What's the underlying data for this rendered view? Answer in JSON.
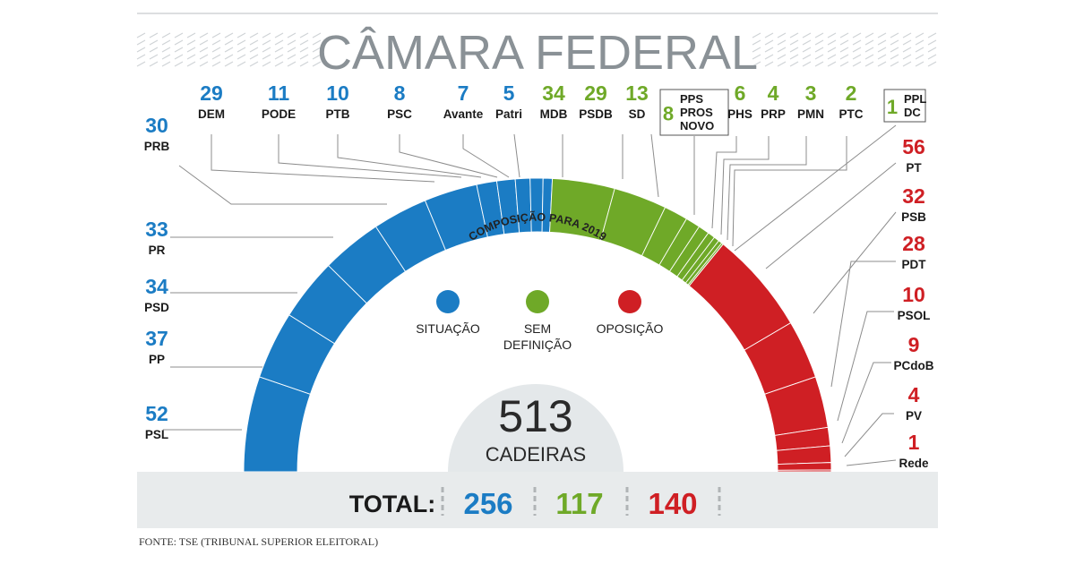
{
  "title": "CÂMARA FEDERAL",
  "source": "FONTE: TSE (TRIBUNAL SUPERIOR ELEITORAL)",
  "colors": {
    "situacao": "#1b7cc4",
    "sem_definicao": "#6fa928",
    "oposicao": "#cf1f24",
    "title": "#8a9196",
    "leader": "#8c8c8c",
    "band": "#e8ebec"
  },
  "chart_data": {
    "type": "parliament_arc",
    "title": "CÂMARA FEDERAL",
    "subtitle": "COMPOSIÇÃO PARA 2019",
    "total_seats": 513,
    "total_label": "CADEIRAS",
    "legend": [
      {
        "name": "SITUAÇÃO",
        "color": "#1b7cc4"
      },
      {
        "name": "SEM DEFINIÇÃO",
        "color": "#6fa928"
      },
      {
        "name": "OPOSIÇÃO",
        "color": "#cf1f24"
      }
    ],
    "parties": [
      {
        "name": "PSL",
        "seats": 52,
        "group": "situacao"
      },
      {
        "name": "PP",
        "seats": 37,
        "group": "situacao"
      },
      {
        "name": "PSD",
        "seats": 34,
        "group": "situacao"
      },
      {
        "name": "PR",
        "seats": 33,
        "group": "situacao"
      },
      {
        "name": "PRB",
        "seats": 30,
        "group": "situacao"
      },
      {
        "name": "DEM",
        "seats": 29,
        "group": "situacao"
      },
      {
        "name": "PODE",
        "seats": 11,
        "group": "situacao"
      },
      {
        "name": "PTB",
        "seats": 10,
        "group": "situacao"
      },
      {
        "name": "PSC",
        "seats": 8,
        "group": "situacao"
      },
      {
        "name": "Avante",
        "seats": 7,
        "group": "situacao"
      },
      {
        "name": "Patri",
        "seats": 5,
        "group": "situacao"
      },
      {
        "name": "MDB",
        "seats": 34,
        "group": "sem_definicao"
      },
      {
        "name": "PSDB",
        "seats": 29,
        "group": "sem_definicao"
      },
      {
        "name": "SD",
        "seats": 13,
        "group": "sem_definicao"
      },
      {
        "name": "PPS PROS NOVO",
        "seats": 8,
        "group": "sem_definicao",
        "boxed": true,
        "lines": [
          "PPS",
          "PROS",
          "NOVO"
        ]
      },
      {
        "name": "PHS",
        "seats": 6,
        "group": "sem_definicao"
      },
      {
        "name": "PRP",
        "seats": 4,
        "group": "sem_definicao"
      },
      {
        "name": "PMN",
        "seats": 3,
        "group": "sem_definicao"
      },
      {
        "name": "PTC",
        "seats": 2,
        "group": "sem_definicao"
      },
      {
        "name": "PPL DC",
        "seats": 1,
        "group": "sem_definicao",
        "boxed": true,
        "lines": [
          "PPL",
          "DC"
        ]
      },
      {
        "name": "PT",
        "seats": 56,
        "group": "oposicao"
      },
      {
        "name": "PSB",
        "seats": 32,
        "group": "oposicao"
      },
      {
        "name": "PDT",
        "seats": 28,
        "group": "oposicao"
      },
      {
        "name": "PSOL",
        "seats": 10,
        "group": "oposicao"
      },
      {
        "name": "PCdoB",
        "seats": 9,
        "group": "oposicao"
      },
      {
        "name": "PV",
        "seats": 4,
        "group": "oposicao"
      },
      {
        "name": "Rede",
        "seats": 1,
        "group": "oposicao"
      }
    ],
    "totals": {
      "label": "TOTAL:",
      "situacao": 256,
      "sem_definicao": 117,
      "oposicao": 140
    }
  }
}
